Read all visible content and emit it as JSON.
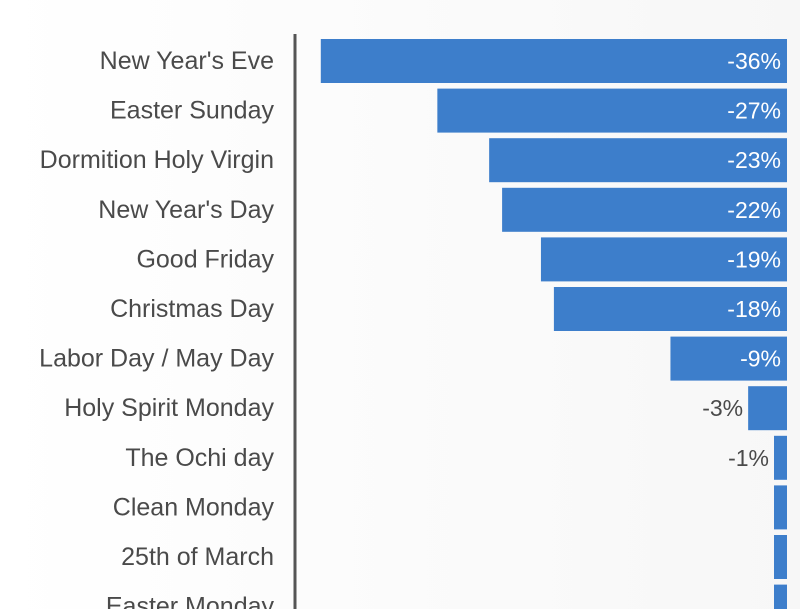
{
  "chart_data": {
    "type": "bar",
    "orientation": "horizontal",
    "categories": [
      "New Year's Eve",
      "Easter Sunday",
      "Dormition Holy Virgin",
      "New Year's Day",
      "Good Friday",
      "Christmas Day",
      "Labor Day / May Day",
      "Holy Spirit Monday",
      "The Ochi day",
      "Clean Monday",
      "25th of March",
      "Easter Monday"
    ],
    "values": [
      -36,
      -27,
      -23,
      -22,
      -19,
      -18,
      -9,
      -3,
      -1,
      0,
      0,
      0
    ],
    "value_labels": [
      "-36%",
      "-27%",
      "-23%",
      "-22%",
      "-19%",
      "-18%",
      "-9%",
      "-3%",
      "-1%",
      "",
      "",
      ""
    ],
    "unit": "%",
    "bar_color": "#3d7ecb",
    "axis_color": "#555555",
    "grid": false,
    "legend": "none"
  }
}
